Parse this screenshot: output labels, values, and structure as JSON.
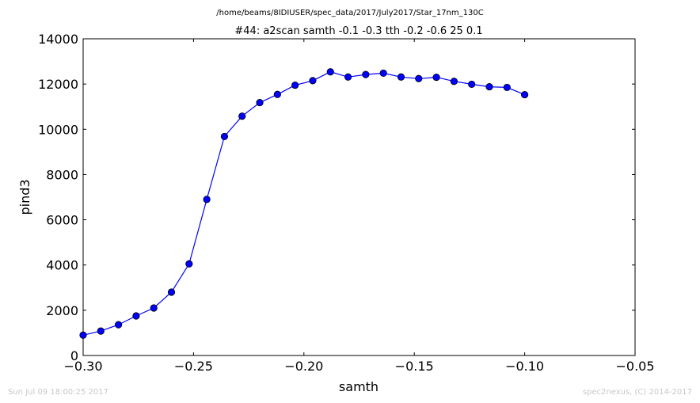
{
  "header": {
    "path": "/home/beams/8IDIUSER/spec_data/2017/July2017/Star_17nm_130C"
  },
  "footer": {
    "timestamp": "Sun Jul 09 18:00:25 2017",
    "credit": "spec2nexus, (C) 2014-2017"
  },
  "chart_data": {
    "type": "line",
    "title": "#44: a2scan  samth -0.1 -0.3  tth -0.2 -0.6  25 0.1",
    "xlabel": "samth",
    "ylabel": "pind3",
    "xlim": [
      -0.3,
      -0.05
    ],
    "ylim": [
      0,
      14000
    ],
    "x_ticks": [
      -0.3,
      -0.25,
      -0.2,
      -0.15,
      -0.1,
      -0.05
    ],
    "x_tick_labels": [
      "−0.30",
      "−0.25",
      "−0.20",
      "−0.15",
      "−0.10",
      "−0.05"
    ],
    "y_ticks": [
      0,
      2000,
      4000,
      6000,
      8000,
      10000,
      12000,
      14000
    ],
    "y_tick_labels": [
      "0",
      "2000",
      "4000",
      "6000",
      "8000",
      "10000",
      "12000",
      "14000"
    ],
    "grid": false,
    "line_color": "#0000ff",
    "marker": "circle",
    "series": [
      {
        "x": [
          -0.3,
          -0.292,
          -0.284,
          -0.276,
          -0.268,
          -0.26,
          -0.252,
          -0.244,
          -0.236,
          -0.228,
          -0.22,
          -0.212,
          -0.204,
          -0.196,
          -0.188,
          -0.18,
          -0.172,
          -0.164,
          -0.156,
          -0.148,
          -0.14,
          -0.132,
          -0.124,
          -0.116,
          -0.108,
          -0.1
        ],
        "y": [
          900,
          1080,
          1360,
          1750,
          2100,
          2800,
          4050,
          6900,
          9680,
          10580,
          11180,
          11540,
          11950,
          12150,
          12540,
          12310,
          12420,
          12480,
          12310,
          12240,
          12300,
          12120,
          11990,
          11880,
          11850,
          11530
        ]
      }
    ]
  }
}
